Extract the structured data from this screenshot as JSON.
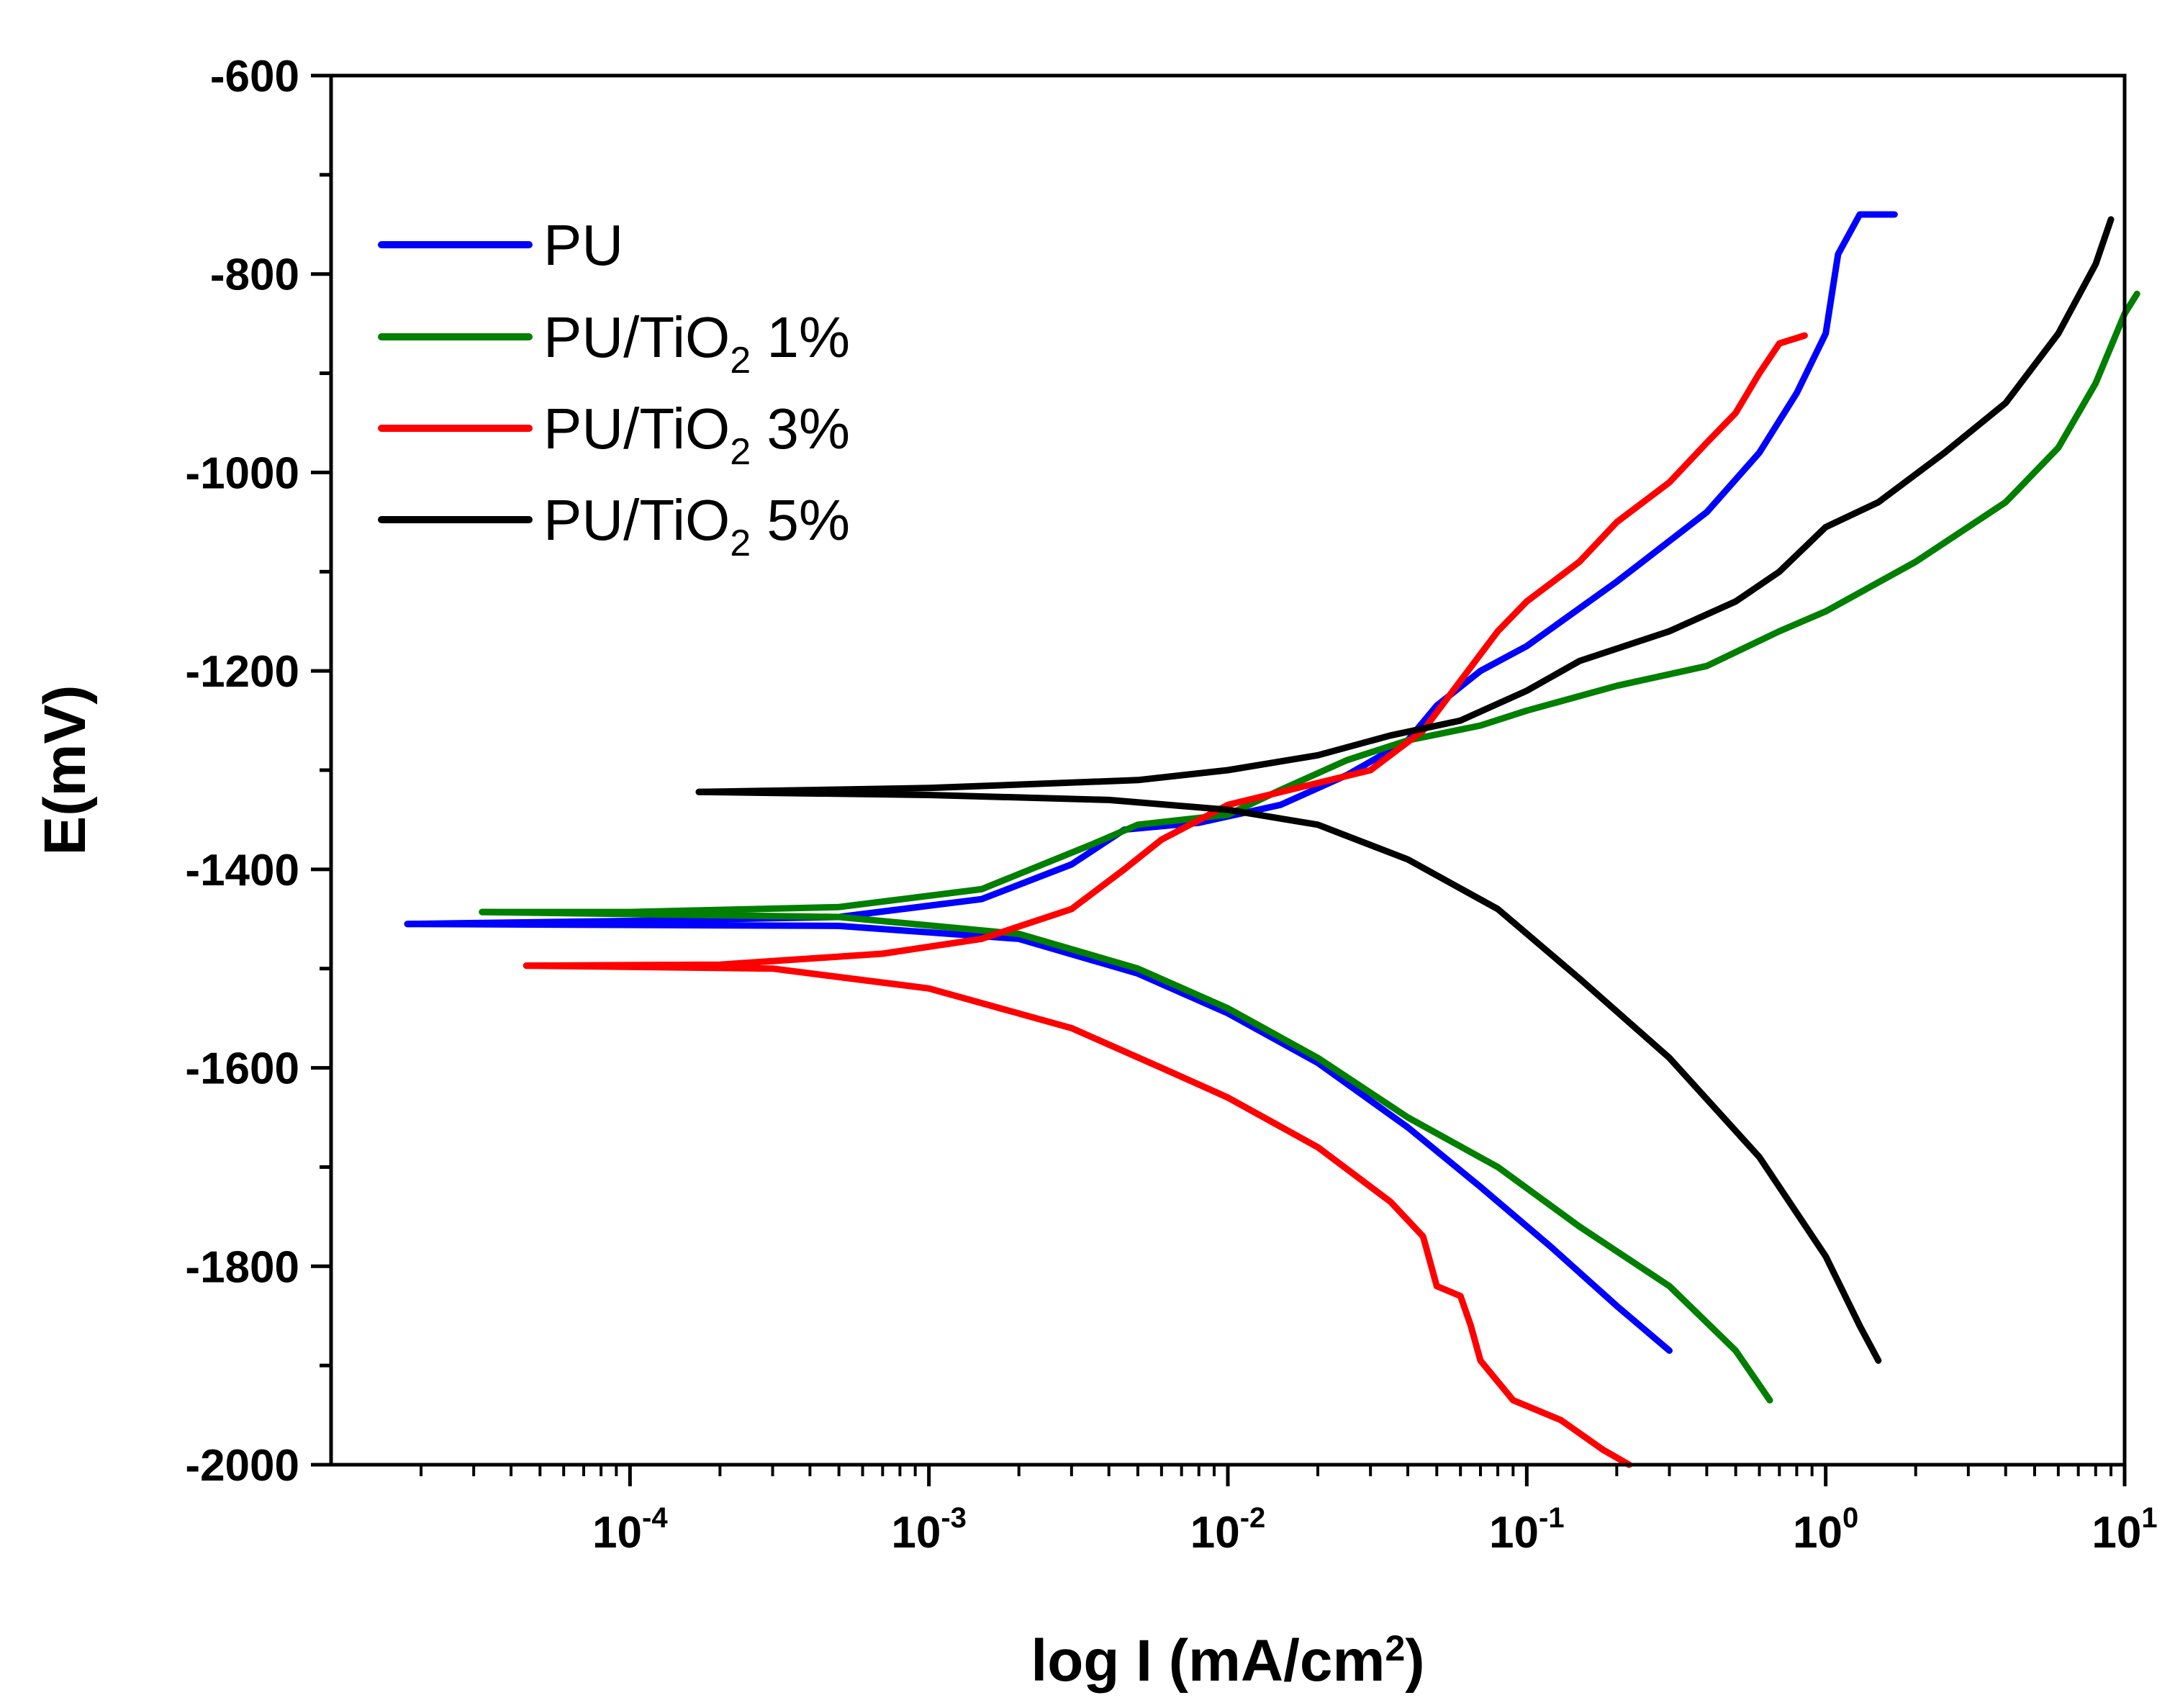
{
  "chart_data": {
    "type": "line",
    "title": "",
    "xlabel_parts": {
      "main": "log I (mA/cm",
      "sup": "2",
      "end": ")"
    },
    "ylabel": "E(mV)",
    "xscale": "log",
    "xlim": [
      1e-05,
      10
    ],
    "ylim": [
      -2000,
      -600
    ],
    "yticks": [
      -600,
      -800,
      -1000,
      -1200,
      -1400,
      -1600,
      -1800,
      -2000
    ],
    "xticks": [
      {
        "value": 0.0001,
        "base": "10",
        "exp": "-4"
      },
      {
        "value": 0.001,
        "base": "10",
        "exp": "-3"
      },
      {
        "value": 0.01,
        "base": "10",
        "exp": "-2"
      },
      {
        "value": 0.1,
        "base": "10",
        "exp": "-1"
      },
      {
        "value": 1,
        "base": "10",
        "exp": "0"
      },
      {
        "value": 10,
        "base": "10",
        "exp": "1"
      }
    ],
    "legend": {
      "position": "top-left"
    },
    "series": [
      {
        "name": "PU",
        "label_parts": {
          "main": "PU",
          "sub": "",
          "end": ""
        },
        "color": "#0000ff",
        "anodic": [
          [
            1.8e-05,
            -1455
          ],
          [
            0.0001,
            -1452
          ],
          [
            0.0005,
            -1448
          ],
          [
            0.0015,
            -1430
          ],
          [
            0.003,
            -1395
          ],
          [
            0.0045,
            -1360
          ],
          [
            0.008,
            -1353
          ],
          [
            0.015,
            -1335
          ],
          [
            0.025,
            -1305
          ],
          [
            0.04,
            -1270
          ],
          [
            0.05,
            -1235
          ],
          [
            0.07,
            -1200
          ],
          [
            0.1,
            -1175
          ],
          [
            0.2,
            -1110
          ],
          [
            0.4,
            -1040
          ],
          [
            0.6,
            -980
          ],
          [
            0.8,
            -920
          ],
          [
            1.0,
            -860
          ],
          [
            1.1,
            -780
          ],
          [
            1.3,
            -740
          ],
          [
            1.7,
            -740
          ]
        ],
        "cathodic": [
          [
            1.8e-05,
            -1455
          ],
          [
            0.0005,
            -1457
          ],
          [
            0.002,
            -1470
          ],
          [
            0.005,
            -1505
          ],
          [
            0.01,
            -1545
          ],
          [
            0.02,
            -1595
          ],
          [
            0.04,
            -1660
          ],
          [
            0.07,
            -1720
          ],
          [
            0.12,
            -1780
          ],
          [
            0.2,
            -1840
          ],
          [
            0.3,
            -1885
          ]
        ]
      },
      {
        "name": "PU/TiO2 1%",
        "label_parts": {
          "main": "PU/TiO",
          "sub": "2",
          "end": " 1%"
        },
        "color": "#007f00",
        "anodic": [
          [
            3.2e-05,
            -1443
          ],
          [
            0.0001,
            -1443
          ],
          [
            0.0005,
            -1438
          ],
          [
            0.0015,
            -1420
          ],
          [
            0.0035,
            -1375
          ],
          [
            0.005,
            -1355
          ],
          [
            0.01,
            -1345
          ],
          [
            0.015,
            -1320
          ],
          [
            0.025,
            -1290
          ],
          [
            0.04,
            -1270
          ],
          [
            0.07,
            -1255
          ],
          [
            0.1,
            -1240
          ],
          [
            0.2,
            -1215
          ],
          [
            0.4,
            -1195
          ],
          [
            0.7,
            -1160
          ],
          [
            1.0,
            -1140
          ],
          [
            2,
            -1090
          ],
          [
            4,
            -1030
          ],
          [
            6,
            -975
          ],
          [
            8,
            -910
          ],
          [
            10,
            -840
          ],
          [
            11,
            -820
          ]
        ],
        "cathodic": [
          [
            3.2e-05,
            -1443
          ],
          [
            0.0005,
            -1448
          ],
          [
            0.002,
            -1465
          ],
          [
            0.005,
            -1500
          ],
          [
            0.01,
            -1540
          ],
          [
            0.02,
            -1590
          ],
          [
            0.04,
            -1650
          ],
          [
            0.08,
            -1700
          ],
          [
            0.15,
            -1760
          ],
          [
            0.3,
            -1820
          ],
          [
            0.5,
            -1885
          ],
          [
            0.65,
            -1935
          ]
        ]
      },
      {
        "name": "PU/TiO2 3%",
        "label_parts": {
          "main": "PU/TiO",
          "sub": "2",
          "end": " 3%"
        },
        "color": "#ff0000",
        "anodic": [
          [
            4.5e-05,
            -1497
          ],
          [
            0.0002,
            -1496
          ],
          [
            0.0007,
            -1485
          ],
          [
            0.0015,
            -1470
          ],
          [
            0.003,
            -1440
          ],
          [
            0.0045,
            -1400
          ],
          [
            0.006,
            -1370
          ],
          [
            0.01,
            -1335
          ],
          [
            0.03,
            -1300
          ],
          [
            0.045,
            -1260
          ],
          [
            0.06,
            -1210
          ],
          [
            0.08,
            -1160
          ],
          [
            0.1,
            -1130
          ],
          [
            0.15,
            -1090
          ],
          [
            0.2,
            -1050
          ],
          [
            0.3,
            -1010
          ],
          [
            0.4,
            -970
          ],
          [
            0.5,
            -940
          ],
          [
            0.6,
            -900
          ],
          [
            0.7,
            -870
          ],
          [
            0.85,
            -862
          ]
        ],
        "cathodic": [
          [
            4.5e-05,
            -1497
          ],
          [
            0.0003,
            -1500
          ],
          [
            0.001,
            -1520
          ],
          [
            0.003,
            -1560
          ],
          [
            0.006,
            -1600
          ],
          [
            0.01,
            -1630
          ],
          [
            0.02,
            -1680
          ],
          [
            0.035,
            -1735
          ],
          [
            0.045,
            -1770
          ],
          [
            0.05,
            -1820
          ],
          [
            0.06,
            -1830
          ],
          [
            0.065,
            -1860
          ],
          [
            0.07,
            -1895
          ],
          [
            0.09,
            -1935
          ],
          [
            0.13,
            -1955
          ],
          [
            0.18,
            -1985
          ],
          [
            0.22,
            -2000
          ]
        ]
      },
      {
        "name": "PU/TiO2 5%",
        "label_parts": {
          "main": "PU/TiO",
          "sub": "2",
          "end": " 5%"
        },
        "color": "#000000",
        "anodic": [
          [
            0.00017,
            -1322
          ],
          [
            0.001,
            -1318
          ],
          [
            0.005,
            -1310
          ],
          [
            0.01,
            -1300
          ],
          [
            0.02,
            -1285
          ],
          [
            0.035,
            -1265
          ],
          [
            0.06,
            -1250
          ],
          [
            0.1,
            -1220
          ],
          [
            0.15,
            -1190
          ],
          [
            0.3,
            -1160
          ],
          [
            0.5,
            -1130
          ],
          [
            0.7,
            -1100
          ],
          [
            1,
            -1055
          ],
          [
            1.5,
            -1030
          ],
          [
            2.5,
            -980
          ],
          [
            4,
            -930
          ],
          [
            6,
            -860
          ],
          [
            8,
            -790
          ],
          [
            9,
            -745
          ]
        ],
        "cathodic": [
          [
            0.00017,
            -1322
          ],
          [
            0.001,
            -1325
          ],
          [
            0.004,
            -1330
          ],
          [
            0.01,
            -1340
          ],
          [
            0.02,
            -1355
          ],
          [
            0.04,
            -1390
          ],
          [
            0.08,
            -1440
          ],
          [
            0.15,
            -1510
          ],
          [
            0.3,
            -1590
          ],
          [
            0.6,
            -1690
          ],
          [
            1.0,
            -1790
          ],
          [
            1.3,
            -1860
          ],
          [
            1.5,
            -1895
          ]
        ]
      }
    ]
  }
}
